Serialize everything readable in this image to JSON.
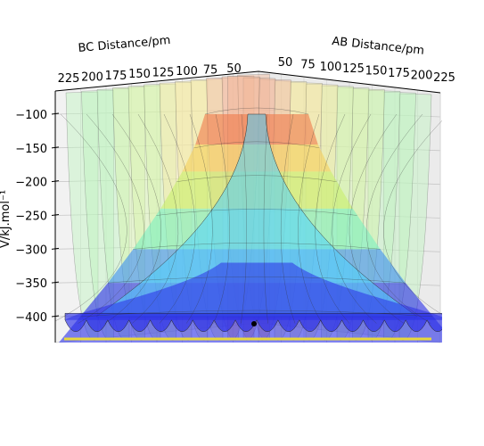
{
  "chart_data": {
    "type": "surface",
    "xlabel": "AB Distance/pm",
    "ylabel": "BC Distance/pm",
    "zlabel": "V/kJ.mol⁻¹",
    "ab_ticks": [
      "50",
      "75",
      "100",
      "125",
      "150",
      "175",
      "200",
      "225"
    ],
    "bc_ticks": [
      "50",
      "75",
      "100",
      "125",
      "150",
      "175",
      "200",
      "225"
    ],
    "z_ticks": [
      "−100",
      "−150",
      "−200",
      "−250",
      "−300",
      "−350",
      "−400"
    ],
    "z_values": [
      -100,
      -150,
      -200,
      -250,
      -300,
      -350,
      -400
    ],
    "zlim": [
      -440,
      -70
    ],
    "grid": true,
    "colormap": "jet",
    "bands": [
      {
        "z_low": -440,
        "z_high": -350,
        "color": "#2a2ee8"
      },
      {
        "z_low": -350,
        "z_high": -300,
        "color": "#3a8ef0"
      },
      {
        "z_low": -300,
        "z_high": -240,
        "color": "#7af0c0"
      },
      {
        "z_low": -240,
        "z_high": -185,
        "color": "#c8f06a"
      },
      {
        "z_low": -185,
        "z_high": -145,
        "color": "#f5d05a"
      },
      {
        "z_low": -145,
        "z_high": -70,
        "color": "#f07a4a"
      }
    ],
    "well_fill_colors": [
      "#bff3bf",
      "#d5f5a8",
      "#f5e8a0",
      "#f2b79a"
    ],
    "marker_color": "#000000",
    "floor_line_color": "#e8d83a"
  }
}
